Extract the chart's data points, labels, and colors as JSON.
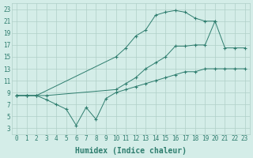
{
  "line1_x": [
    0,
    1,
    2,
    10,
    11,
    12,
    13,
    14,
    15,
    16,
    17,
    18,
    19,
    20
  ],
  "line1_y": [
    8.5,
    8.5,
    8.5,
    15.0,
    16.5,
    18.5,
    19.5,
    22.0,
    22.5,
    22.8,
    22.5,
    21.5,
    21.0,
    21.0
  ],
  "line2_x": [
    0,
    1,
    2,
    3,
    10,
    11,
    12,
    13,
    14,
    15,
    16,
    17,
    18,
    19,
    20,
    21,
    22,
    23
  ],
  "line2_y": [
    8.5,
    8.5,
    8.5,
    8.5,
    9.5,
    10.5,
    11.5,
    13.0,
    14.0,
    15.0,
    16.8,
    16.8,
    17.0,
    17.0,
    21.0,
    16.5,
    16.5,
    16.5
  ],
  "line3_x": [
    0,
    1,
    2,
    3,
    4,
    5,
    6,
    7,
    8,
    9,
    10,
    11,
    12,
    13,
    14,
    15,
    16,
    17,
    18,
    19,
    20,
    21,
    22,
    23
  ],
  "line3_y": [
    8.5,
    8.5,
    8.5,
    7.8,
    7.0,
    6.2,
    3.5,
    6.5,
    4.5,
    8.0,
    9.0,
    9.5,
    10.0,
    10.5,
    11.0,
    11.5,
    12.0,
    12.5,
    12.5,
    13.0,
    13.0,
    13.0,
    13.0,
    13.0
  ],
  "line_color": "#2e7d6e",
  "bg_color": "#d4ede8",
  "grid_color": "#b0cfc8",
  "xlabel": "Humidex (Indice chaleur)",
  "xlim": [
    -0.5,
    23.5
  ],
  "ylim": [
    2,
    24
  ],
  "xticks": [
    0,
    1,
    2,
    3,
    4,
    5,
    6,
    7,
    8,
    9,
    10,
    11,
    12,
    13,
    14,
    15,
    16,
    17,
    18,
    19,
    20,
    21,
    22,
    23
  ],
  "yticks": [
    3,
    5,
    7,
    9,
    11,
    13,
    15,
    17,
    19,
    21,
    23
  ],
  "tick_fontsize": 5.5,
  "xlabel_fontsize": 7
}
